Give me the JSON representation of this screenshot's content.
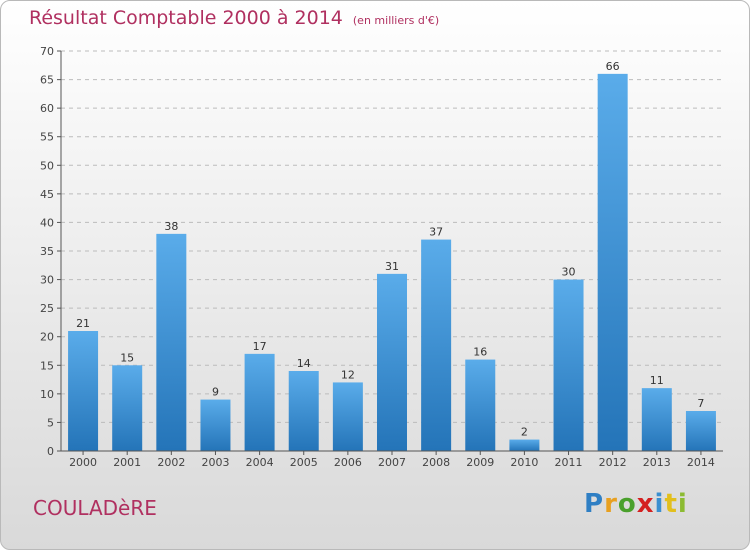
{
  "page": {
    "title": "Résultat Comptable 2000 à 2014",
    "subtitle": "(en milliers d'€)",
    "commune": "COULADèRE",
    "logo": "Proxiti"
  },
  "colors": {
    "title": "#b03060",
    "bar_top": "#5aacea",
    "bar_bottom": "#2474b8",
    "grid": "#bcbcbc"
  },
  "chart_data": {
    "type": "bar",
    "title": "Résultat Comptable 2000 à 2014",
    "subtitle": "(en milliers d'€)",
    "categories": [
      "2000",
      "2001",
      "2002",
      "2003",
      "2004",
      "2005",
      "2006",
      "2007",
      "2008",
      "2009",
      "2010",
      "2011",
      "2012",
      "2013",
      "2014"
    ],
    "values": [
      21,
      15,
      38,
      9,
      17,
      14,
      12,
      31,
      37,
      16,
      2,
      30,
      66,
      11,
      7
    ],
    "ylim": [
      0,
      70
    ],
    "yticks": [
      0,
      5,
      10,
      15,
      20,
      25,
      30,
      35,
      40,
      45,
      50,
      55,
      60,
      65,
      70
    ],
    "grid": true,
    "data_labels": true
  }
}
